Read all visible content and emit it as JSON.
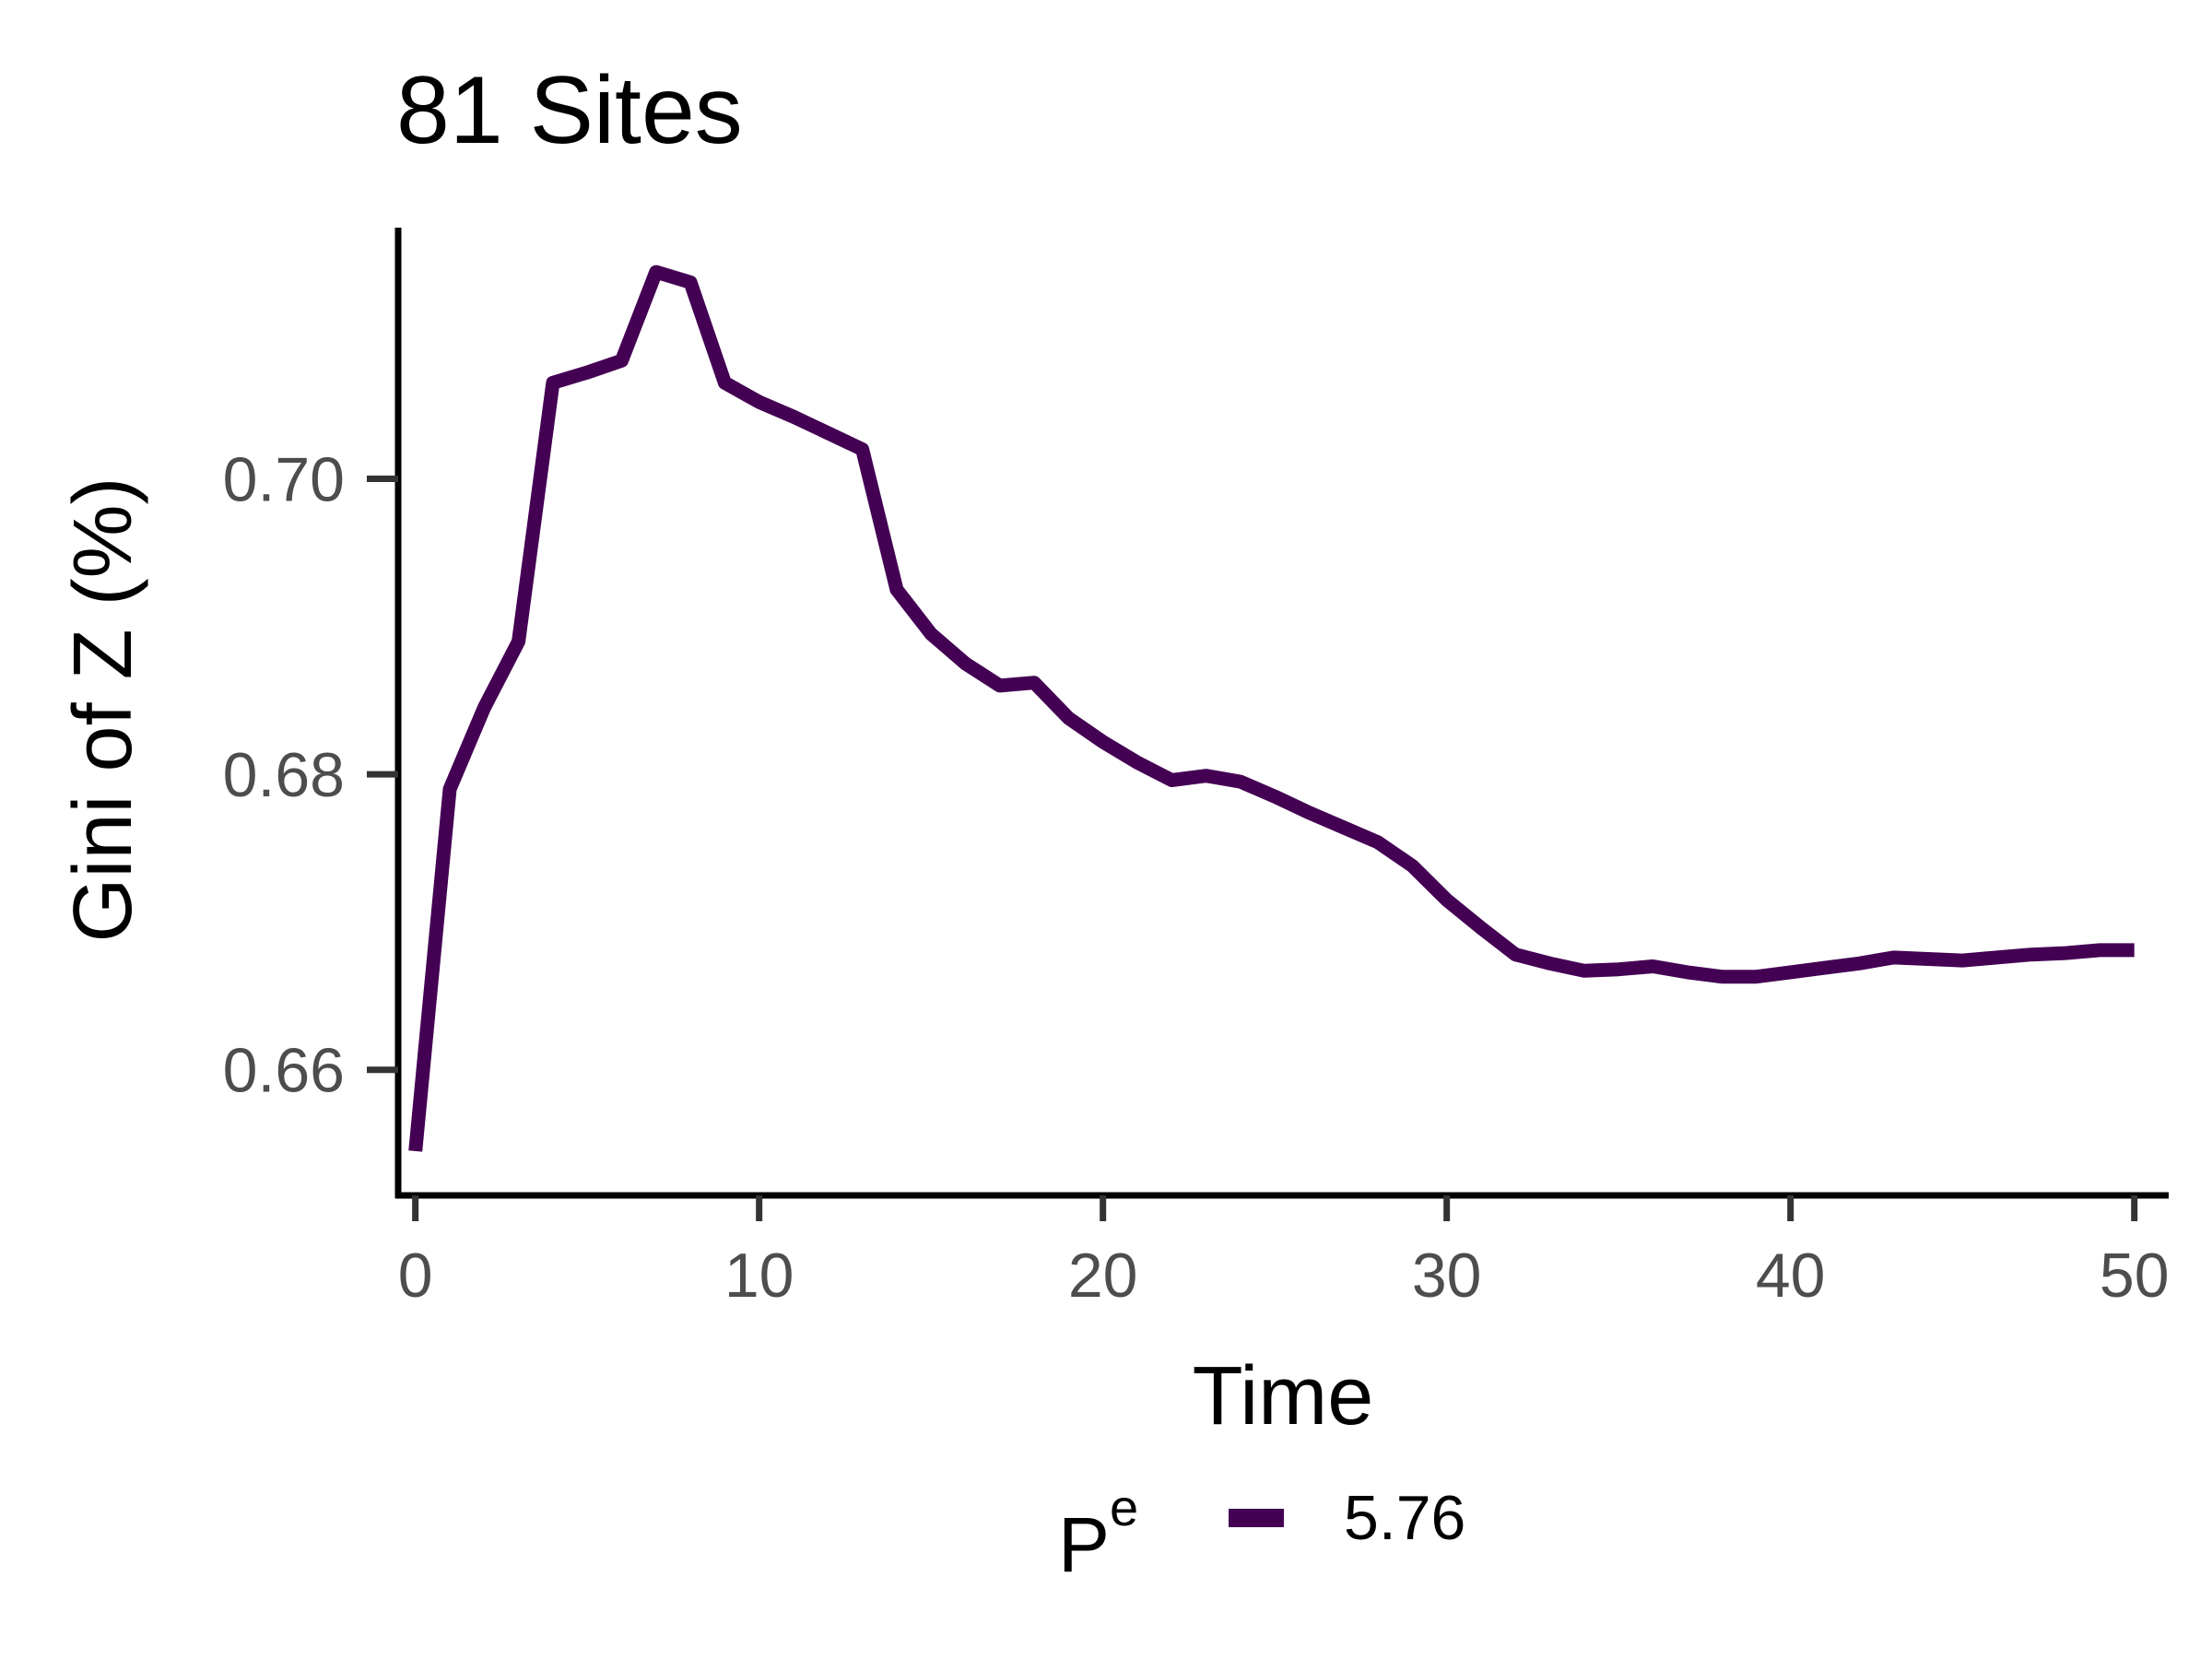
{
  "chart_data": {
    "type": "line",
    "title": "81 Sites",
    "xlabel": "Time",
    "ylabel": "Gini of Z (%)",
    "xlim": [
      -0.5,
      51
    ],
    "ylim": [
      0.6515,
      0.717
    ],
    "x_ticks": [
      0,
      10,
      20,
      30,
      40,
      50
    ],
    "x_tick_labels": [
      "0",
      "10",
      "20",
      "30",
      "40",
      "50"
    ],
    "y_ticks": [
      0.66,
      0.68,
      0.7
    ],
    "y_tick_labels": [
      "0.66",
      "0.68",
      "0.70"
    ],
    "grid": false,
    "legend": {
      "title": "P",
      "title_superscript": "e",
      "position": "bottom",
      "entries": [
        "5.76"
      ]
    },
    "series": [
      {
        "name": "5.76",
        "color": "#440154",
        "x": [
          0,
          1,
          2,
          3,
          4,
          5,
          6,
          7,
          8,
          9,
          10,
          11,
          12,
          13,
          14,
          15,
          16,
          17,
          18,
          19,
          20,
          21,
          22,
          23,
          24,
          25,
          26,
          27,
          28,
          29,
          30,
          31,
          32,
          33,
          34,
          35,
          36,
          37,
          38,
          39,
          40,
          41,
          42,
          43,
          44,
          45,
          46,
          47,
          48,
          49,
          50
        ],
        "y": [
          0.6545,
          0.679,
          0.6845,
          0.689,
          0.7065,
          0.7072,
          0.708,
          0.714,
          0.7133,
          0.7065,
          0.7052,
          0.7042,
          0.7031,
          0.702,
          0.6925,
          0.6895,
          0.6875,
          0.686,
          0.6862,
          0.6838,
          0.6822,
          0.6808,
          0.6796,
          0.6799,
          0.6795,
          0.6785,
          0.6774,
          0.6764,
          0.6754,
          0.6738,
          0.6715,
          0.6696,
          0.6678,
          0.6672,
          0.6667,
          0.6668,
          0.667,
          0.6666,
          0.6663,
          0.6663,
          0.6666,
          0.6669,
          0.6672,
          0.6676,
          0.6675,
          0.6674,
          0.6676,
          0.6678,
          0.6679,
          0.6681,
          0.6681
        ]
      }
    ]
  }
}
